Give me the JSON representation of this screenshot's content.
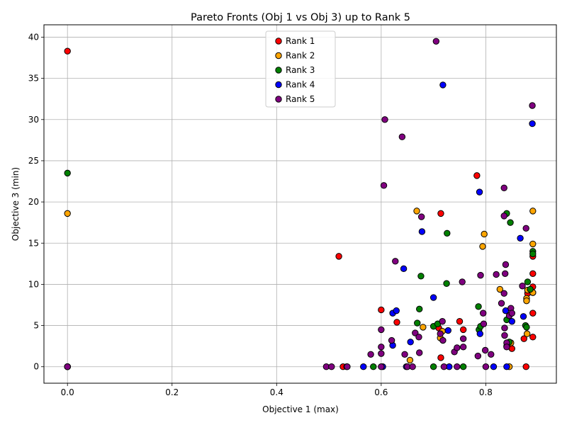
{
  "chart_data": {
    "type": "scatter",
    "title": "Pareto Fronts (Obj 1 vs Obj 3) up to Rank 5",
    "xlabel": "Objective 1 (max)",
    "ylabel": "Objective 3 (min)",
    "xlim": [
      -0.045,
      0.935
    ],
    "ylim": [
      -2.0,
      41.5
    ],
    "xticks": [
      0.0,
      0.2,
      0.4,
      0.6,
      0.8
    ],
    "xtick_labels": [
      "0.0",
      "0.2",
      "0.4",
      "0.6",
      "0.8"
    ],
    "yticks": [
      0,
      5,
      10,
      15,
      20,
      25,
      30,
      35,
      40
    ],
    "ytick_labels": [
      "0",
      "5",
      "10",
      "15",
      "20",
      "25",
      "30",
      "35",
      "40"
    ],
    "grid": true,
    "legend_position": "upper-center",
    "series": [
      {
        "name": "Rank 1",
        "color": "#ff0000",
        "points": [
          [
            0.0,
            0.0
          ],
          [
            0.0,
            38.3
          ],
          [
            0.519,
            13.4
          ],
          [
            0.527,
            0.0
          ],
          [
            0.6,
            6.9
          ],
          [
            0.63,
            5.4
          ],
          [
            0.714,
            18.6
          ],
          [
            0.714,
            1.1
          ],
          [
            0.71,
            4.7
          ],
          [
            0.75,
            5.5
          ],
          [
            0.757,
            4.5
          ],
          [
            0.783,
            23.2
          ],
          [
            0.84,
            2.5
          ],
          [
            0.85,
            2.2
          ],
          [
            0.873,
            3.4
          ],
          [
            0.877,
            0.0
          ],
          [
            0.89,
            13.4
          ],
          [
            0.89,
            11.3
          ],
          [
            0.89,
            9.7
          ],
          [
            0.89,
            9.0
          ],
          [
            0.89,
            6.5
          ],
          [
            0.89,
            3.6
          ],
          [
            0.88,
            8.9
          ]
        ]
      },
      {
        "name": "Rank 2",
        "color": "#ffa500",
        "points": [
          [
            0.0,
            0.0
          ],
          [
            0.0,
            18.6
          ],
          [
            0.534,
            0.0
          ],
          [
            0.655,
            0.8
          ],
          [
            0.668,
            18.9
          ],
          [
            0.68,
            4.8
          ],
          [
            0.713,
            3.5
          ],
          [
            0.717,
            4.3
          ],
          [
            0.794,
            14.6
          ],
          [
            0.797,
            16.1
          ],
          [
            0.827,
            9.4
          ],
          [
            0.845,
            0.0
          ],
          [
            0.848,
            2.9
          ],
          [
            0.878,
            8.3
          ],
          [
            0.878,
            8.0
          ],
          [
            0.879,
            4.0
          ],
          [
            0.88,
            9.3
          ],
          [
            0.89,
            18.9
          ],
          [
            0.89,
            14.9
          ],
          [
            0.89,
            9.0
          ]
        ]
      },
      {
        "name": "Rank 3",
        "color": "#008000",
        "points": [
          [
            0.0,
            0.0
          ],
          [
            0.0,
            23.5
          ],
          [
            0.585,
            0.0
          ],
          [
            0.669,
            5.3
          ],
          [
            0.673,
            7.0
          ],
          [
            0.676,
            11.0
          ],
          [
            0.7,
            0.0
          ],
          [
            0.7,
            4.9
          ],
          [
            0.708,
            5.2
          ],
          [
            0.725,
            10.1
          ],
          [
            0.726,
            16.2
          ],
          [
            0.757,
            0.0
          ],
          [
            0.786,
            7.3
          ],
          [
            0.787,
            4.5
          ],
          [
            0.79,
            4.9
          ],
          [
            0.84,
            18.6
          ],
          [
            0.84,
            5.7
          ],
          [
            0.845,
            3.0
          ],
          [
            0.847,
            17.5
          ],
          [
            0.876,
            5.0
          ],
          [
            0.878,
            4.8
          ],
          [
            0.88,
            10.3
          ],
          [
            0.885,
            9.4
          ],
          [
            0.89,
            14.0
          ],
          [
            0.89,
            13.7
          ]
        ]
      },
      {
        "name": "Rank 4",
        "color": "#0000ff",
        "points": [
          [
            0.0,
            0.0
          ],
          [
            0.566,
            0.0
          ],
          [
            0.603,
            0.0
          ],
          [
            0.622,
            6.5
          ],
          [
            0.622,
            2.6
          ],
          [
            0.629,
            6.8
          ],
          [
            0.643,
            11.9
          ],
          [
            0.648,
            0.0
          ],
          [
            0.656,
            3.0
          ],
          [
            0.678,
            16.4
          ],
          [
            0.7,
            8.4
          ],
          [
            0.718,
            34.2
          ],
          [
            0.728,
            4.4
          ],
          [
            0.73,
            0.0
          ],
          [
            0.788,
            21.2
          ],
          [
            0.789,
            4.0
          ],
          [
            0.815,
            0.0
          ],
          [
            0.838,
            6.8
          ],
          [
            0.84,
            0.0
          ],
          [
            0.85,
            5.5
          ],
          [
            0.866,
            15.6
          ],
          [
            0.872,
            6.1
          ],
          [
            0.889,
            29.5
          ]
        ]
      },
      {
        "name": "Rank 5",
        "color": "#800080",
        "points": [
          [
            0.0,
            0.0
          ],
          [
            0.495,
            0.0
          ],
          [
            0.505,
            0.0
          ],
          [
            0.535,
            0.0
          ],
          [
            0.58,
            1.5
          ],
          [
            0.6,
            4.5
          ],
          [
            0.6,
            2.4
          ],
          [
            0.6,
            1.6
          ],
          [
            0.6,
            0.0
          ],
          [
            0.605,
            22.0
          ],
          [
            0.607,
            30.0
          ],
          [
            0.62,
            3.2
          ],
          [
            0.627,
            12.8
          ],
          [
            0.64,
            27.9
          ],
          [
            0.645,
            1.5
          ],
          [
            0.65,
            0.0
          ],
          [
            0.66,
            0.0
          ],
          [
            0.665,
            4.1
          ],
          [
            0.672,
            3.6
          ],
          [
            0.673,
            1.7
          ],
          [
            0.677,
            18.2
          ],
          [
            0.705,
            39.5
          ],
          [
            0.713,
            4.0
          ],
          [
            0.717,
            5.5
          ],
          [
            0.718,
            3.2
          ],
          [
            0.72,
            0.0
          ],
          [
            0.74,
            1.8
          ],
          [
            0.745,
            2.3
          ],
          [
            0.745,
            0.0
          ],
          [
            0.755,
            10.3
          ],
          [
            0.757,
            3.4
          ],
          [
            0.757,
            2.4
          ],
          [
            0.785,
            1.3
          ],
          [
            0.79,
            11.1
          ],
          [
            0.795,
            6.5
          ],
          [
            0.796,
            5.2
          ],
          [
            0.799,
            2.0
          ],
          [
            0.8,
            0.0
          ],
          [
            0.81,
            1.5
          ],
          [
            0.82,
            11.2
          ],
          [
            0.83,
            7.7
          ],
          [
            0.835,
            21.7
          ],
          [
            0.835,
            18.3
          ],
          [
            0.835,
            8.9
          ],
          [
            0.836,
            4.7
          ],
          [
            0.836,
            3.8
          ],
          [
            0.837,
            11.3
          ],
          [
            0.838,
            12.4
          ],
          [
            0.84,
            2.9
          ],
          [
            0.84,
            2.4
          ],
          [
            0.845,
            6.2
          ],
          [
            0.848,
            7.1
          ],
          [
            0.85,
            6.5
          ],
          [
            0.87,
            9.8
          ],
          [
            0.877,
            16.8
          ],
          [
            0.889,
            31.7
          ]
        ]
      }
    ]
  }
}
